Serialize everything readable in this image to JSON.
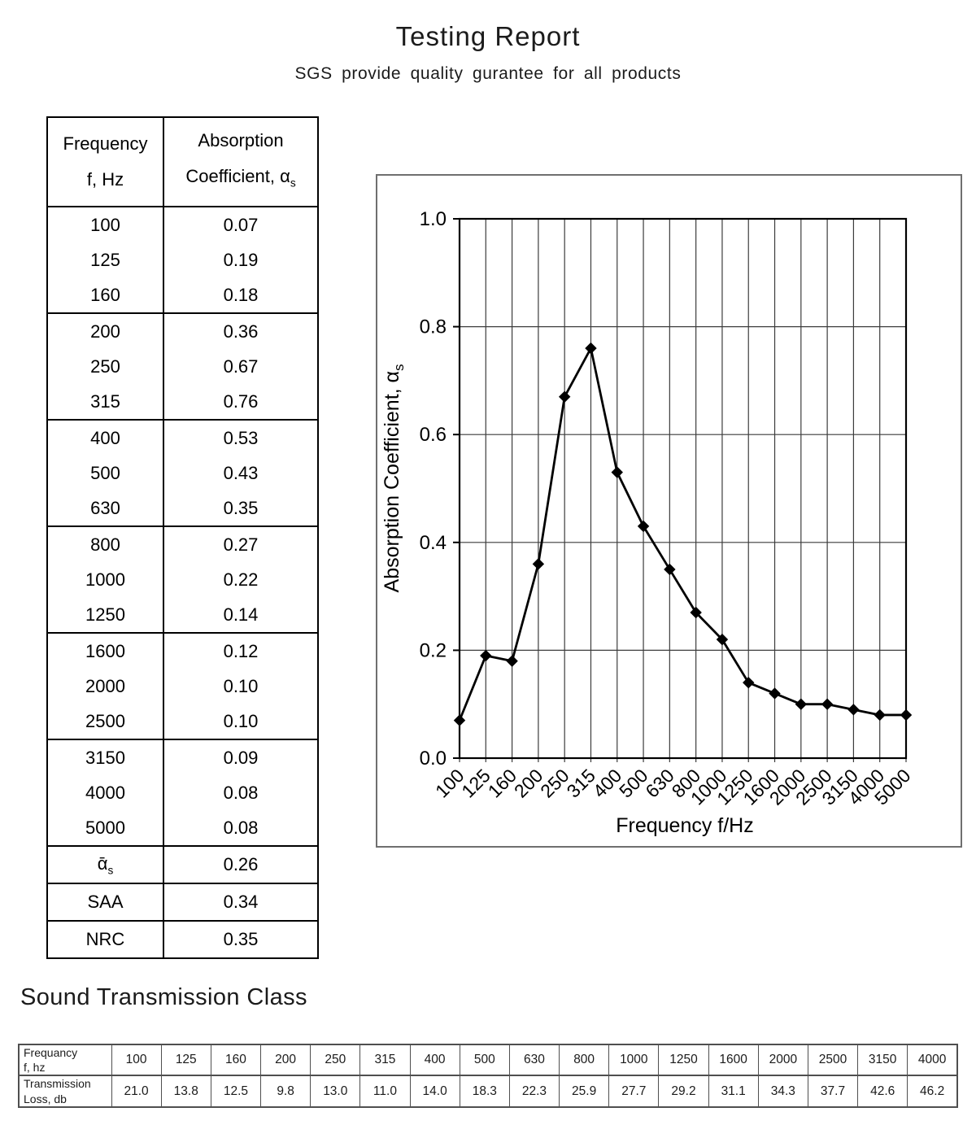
{
  "header": {
    "title": "Testing Report",
    "subtitle": "SGS provide quality gurantee for all products"
  },
  "absorption_table": {
    "headers": {
      "frequency_line1": "Frequency",
      "frequency_line2": "f, Hz",
      "coefficient_line1": "Absorption",
      "coefficient_line2_main": "Coefficient, α",
      "coefficient_line2_sub": "s"
    },
    "rows": [
      {
        "f": "100",
        "a": "0.07"
      },
      {
        "f": "125",
        "a": "0.19"
      },
      {
        "f": "160",
        "a": "0.18"
      },
      {
        "f": "200",
        "a": "0.36"
      },
      {
        "f": "250",
        "a": "0.67"
      },
      {
        "f": "315",
        "a": "0.76"
      },
      {
        "f": "400",
        "a": "0.53"
      },
      {
        "f": "500",
        "a": "0.43"
      },
      {
        "f": "630",
        "a": "0.35"
      },
      {
        "f": "800",
        "a": "0.27"
      },
      {
        "f": "1000",
        "a": "0.22"
      },
      {
        "f": "1250",
        "a": "0.14"
      },
      {
        "f": "1600",
        "a": "0.12"
      },
      {
        "f": "2000",
        "a": "0.10"
      },
      {
        "f": "2500",
        "a": "0.10"
      },
      {
        "f": "3150",
        "a": "0.09"
      },
      {
        "f": "4000",
        "a": "0.08"
      },
      {
        "f": "5000",
        "a": "0.08"
      }
    ],
    "summary": [
      {
        "label_main": "ᾱ",
        "label_sub": "s",
        "value": "0.26"
      },
      {
        "label": "SAA",
        "value": "0.34"
      },
      {
        "label": "NRC",
        "value": "0.35"
      }
    ]
  },
  "chart_data": {
    "type": "line",
    "categories": [
      "100",
      "125",
      "160",
      "200",
      "250",
      "315",
      "400",
      "500",
      "630",
      "800",
      "1000",
      "1250",
      "1600",
      "2000",
      "2500",
      "3150",
      "4000",
      "5000"
    ],
    "values": [
      0.07,
      0.19,
      0.18,
      0.36,
      0.67,
      0.76,
      0.53,
      0.43,
      0.35,
      0.27,
      0.22,
      0.14,
      0.12,
      0.1,
      0.1,
      0.09,
      0.08,
      0.08
    ],
    "title": "",
    "xlabel": "Frequency f/Hz",
    "ylabel_main": "Absorption Coefficient, α",
    "ylabel_sub": "s",
    "ylim": [
      0.0,
      1.0
    ],
    "yticks": [
      0.0,
      0.2,
      0.4,
      0.6,
      0.8,
      1.0
    ],
    "grid": true,
    "legend_position": "none",
    "marker": "diamond",
    "series_color": "#000000"
  },
  "stc": {
    "heading": "Sound Transmission Class",
    "row1_header_line1": "Frequancy",
    "row1_header_line2": "f, hz",
    "row2_header_line1": "Transmission",
    "row2_header_line2": "Loss, db",
    "frequencies": [
      "100",
      "125",
      "160",
      "200",
      "250",
      "315",
      "400",
      "500",
      "630",
      "800",
      "1000",
      "1250",
      "1600",
      "2000",
      "2500",
      "3150",
      "4000"
    ],
    "losses": [
      "21.0",
      "13.8",
      "12.5",
      "9.8",
      "13.0",
      "11.0",
      "14.0",
      "18.3",
      "22.3",
      "25.9",
      "27.7",
      "29.2",
      "31.1",
      "34.3",
      "37.7",
      "42.6",
      "46.2"
    ]
  }
}
